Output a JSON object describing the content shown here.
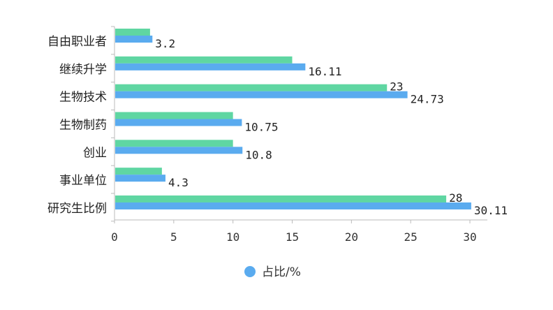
{
  "chart_data": {
    "type": "bar",
    "orientation": "horizontal",
    "categories": [
      "自由职业者",
      "继续升学",
      "生物技术",
      "生物制药",
      "创业",
      "事业单位",
      "研究生比例"
    ],
    "series": [
      {
        "color": "#5fd6a2",
        "values": [
          3,
          15,
          23,
          10,
          10,
          4,
          28
        ],
        "labels": [
          "",
          "",
          "23",
          "",
          "",
          "",
          "28"
        ]
      },
      {
        "name": "占比/%",
        "color": "#5aabef",
        "values": [
          3.2,
          16.11,
          24.73,
          10.75,
          10.8,
          4.3,
          30.11
        ],
        "labels": [
          "3.2",
          "16.11",
          "24.73",
          "10.75",
          "10.8",
          "4.3",
          "30.11"
        ]
      }
    ],
    "xticks": [
      "0",
      "5",
      "10",
      "15",
      "20",
      "25",
      "30"
    ],
    "xlim": [
      0,
      32
    ],
    "legend": {
      "position": "bottom",
      "label": "占比/%",
      "color": "#5aabef"
    }
  }
}
